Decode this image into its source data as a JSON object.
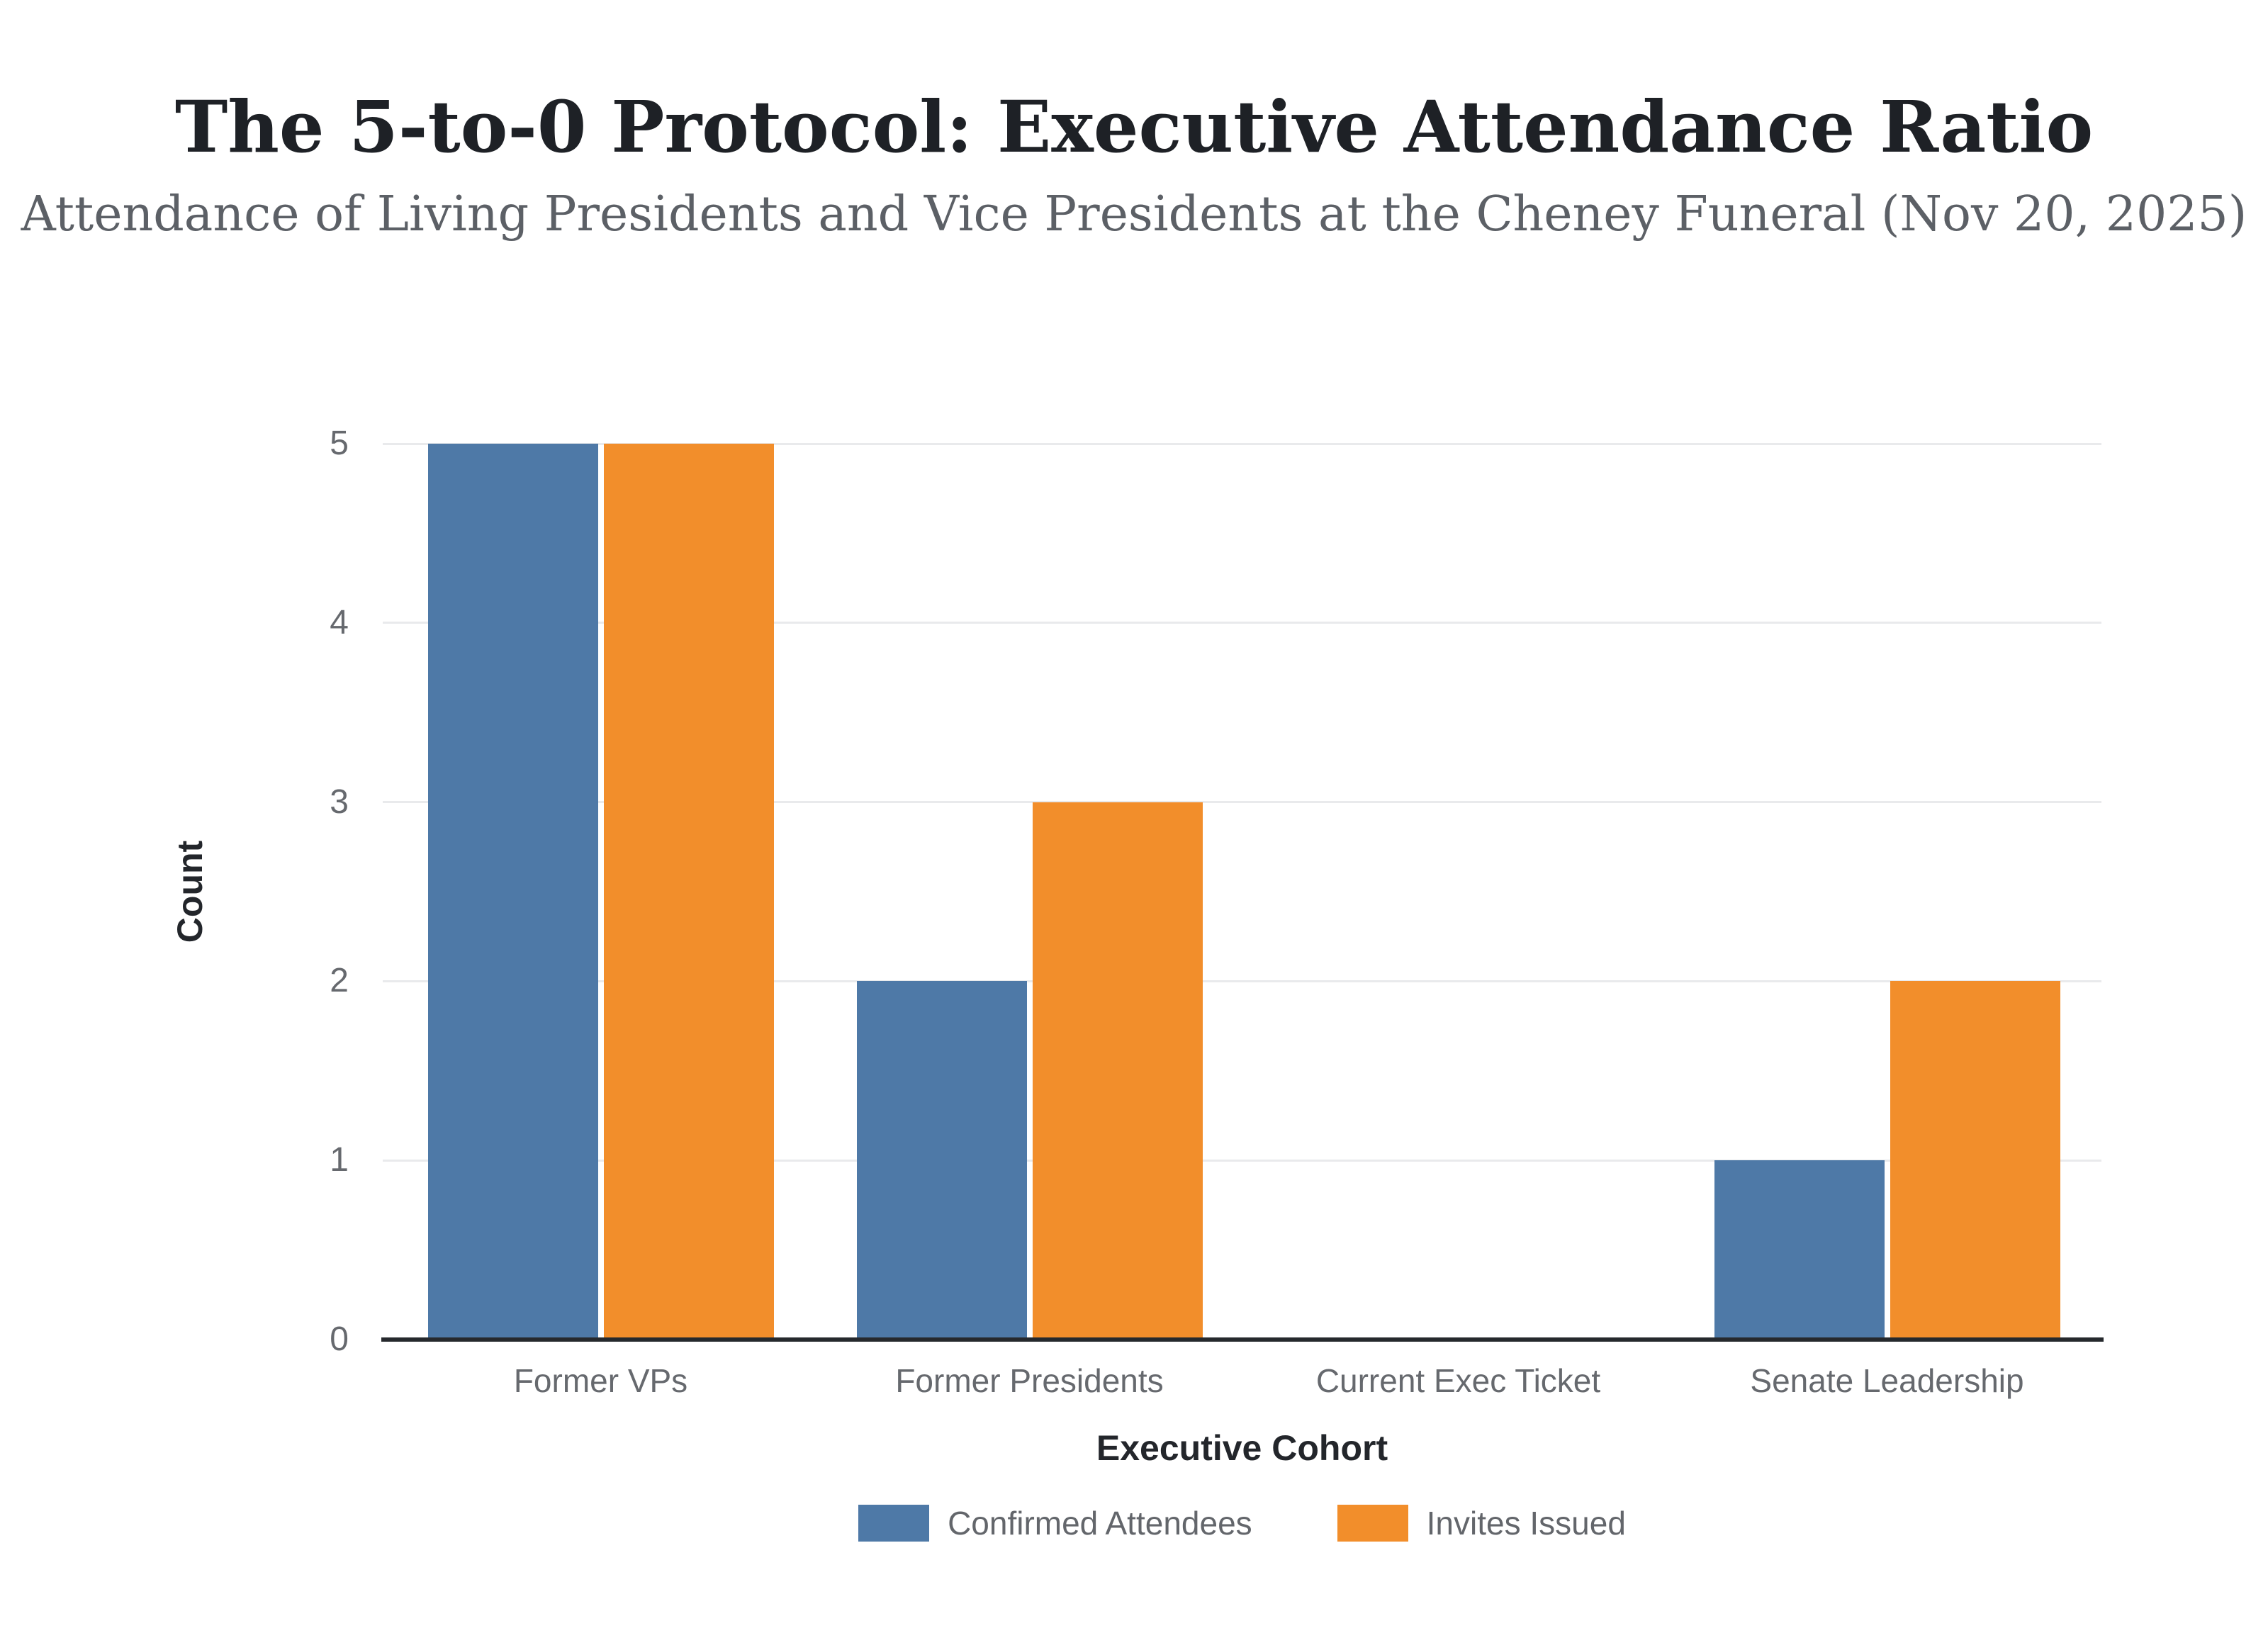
{
  "chart_data": {
    "type": "bar",
    "title": "The 5-to-0 Protocol: Executive Attendance Ratio",
    "subtitle": "Attendance of Living Presidents and Vice Presidents at the Cheney Funeral (Nov 20, 2025)",
    "categories": [
      "Former VPs",
      "Former Presidents",
      "Current Exec Ticket",
      "Senate Leadership"
    ],
    "series": [
      {
        "name": "Confirmed Attendees",
        "color": "#4e79a7",
        "values": [
          5,
          2,
          0,
          1
        ]
      },
      {
        "name": "Invites Issued",
        "color": "#f28e2b",
        "values": [
          5,
          3,
          0,
          2
        ]
      }
    ],
    "xlabel": "Executive Cohort",
    "ylabel": "Count",
    "ylim": [
      0,
      5
    ],
    "yticks": [
      0,
      1,
      2,
      3,
      4,
      5
    ],
    "grid": true,
    "legend_position": "bottom",
    "colors": {
      "background": "#ffffff",
      "gridline": "#e9eaec",
      "axis_line": "#26292d",
      "title_text": "#1e2126",
      "subtitle_text": "#5c6066",
      "tick_text": "#66696e",
      "axis_title_text": "#23262b",
      "legend_text": "#63666b"
    }
  }
}
